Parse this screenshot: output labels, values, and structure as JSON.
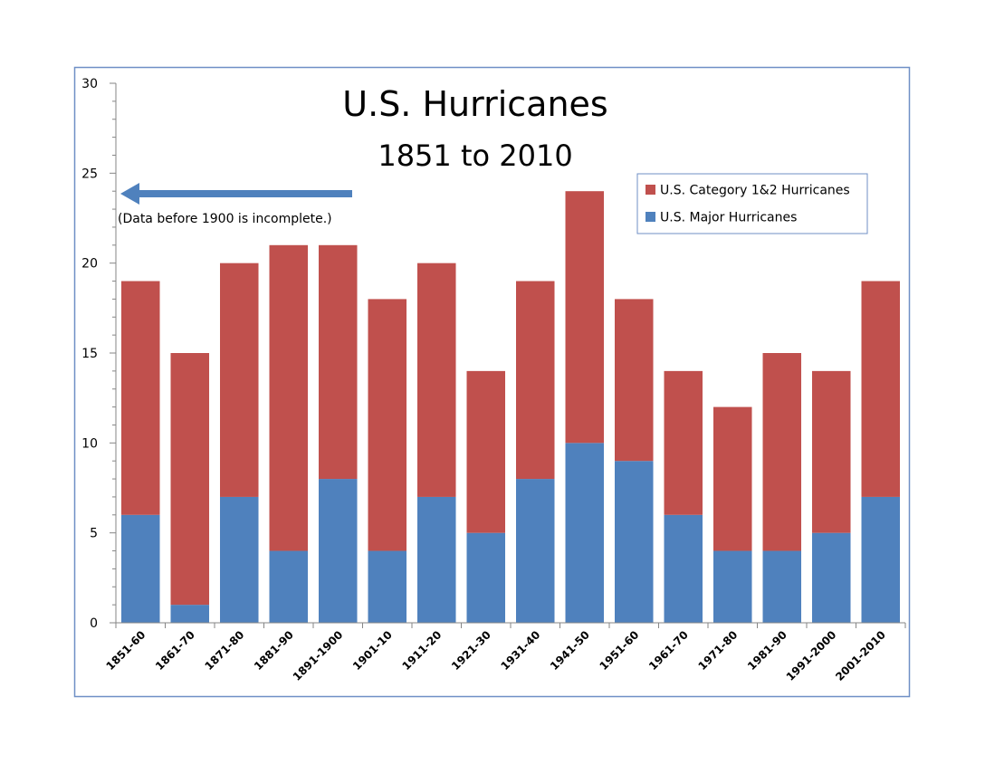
{
  "chart_data": {
    "type": "bar",
    "stacked": true,
    "title": "U.S. Hurricanes",
    "subtitle": "1851 to 2010",
    "annotation": "(Data before 1900 is incomplete.)",
    "categories": [
      "1851-60",
      "1861-70",
      "1871-80",
      "1881-90",
      "1891-1900",
      "1901-10",
      "1911-20",
      "1921-30",
      "1931-40",
      "1941-50",
      "1951-60",
      "1961-70",
      "1971-80",
      "1981-90",
      "1991-2000",
      "2001-2010"
    ],
    "series": [
      {
        "name": "U.S. Major Hurricanes",
        "color": "#4f81bd",
        "values": [
          6,
          1,
          7,
          4,
          8,
          4,
          7,
          5,
          8,
          10,
          9,
          6,
          4,
          4,
          5,
          7
        ]
      },
      {
        "name": "U.S. Category 1&2 Hurricanes",
        "color": "#c0504d",
        "values": [
          13,
          14,
          13,
          17,
          13,
          14,
          13,
          9,
          11,
          14,
          9,
          8,
          8,
          11,
          9,
          12
        ]
      }
    ],
    "ylim": [
      0,
      30
    ],
    "yticks": [
      0,
      5,
      10,
      15,
      20,
      25,
      30
    ],
    "legend_order": [
      "U.S. Category 1&2 Hurricanes",
      "U.S. Major Hurricanes"
    ],
    "legend_position": "top-right",
    "grid": false,
    "xlabel": "",
    "ylabel": ""
  }
}
